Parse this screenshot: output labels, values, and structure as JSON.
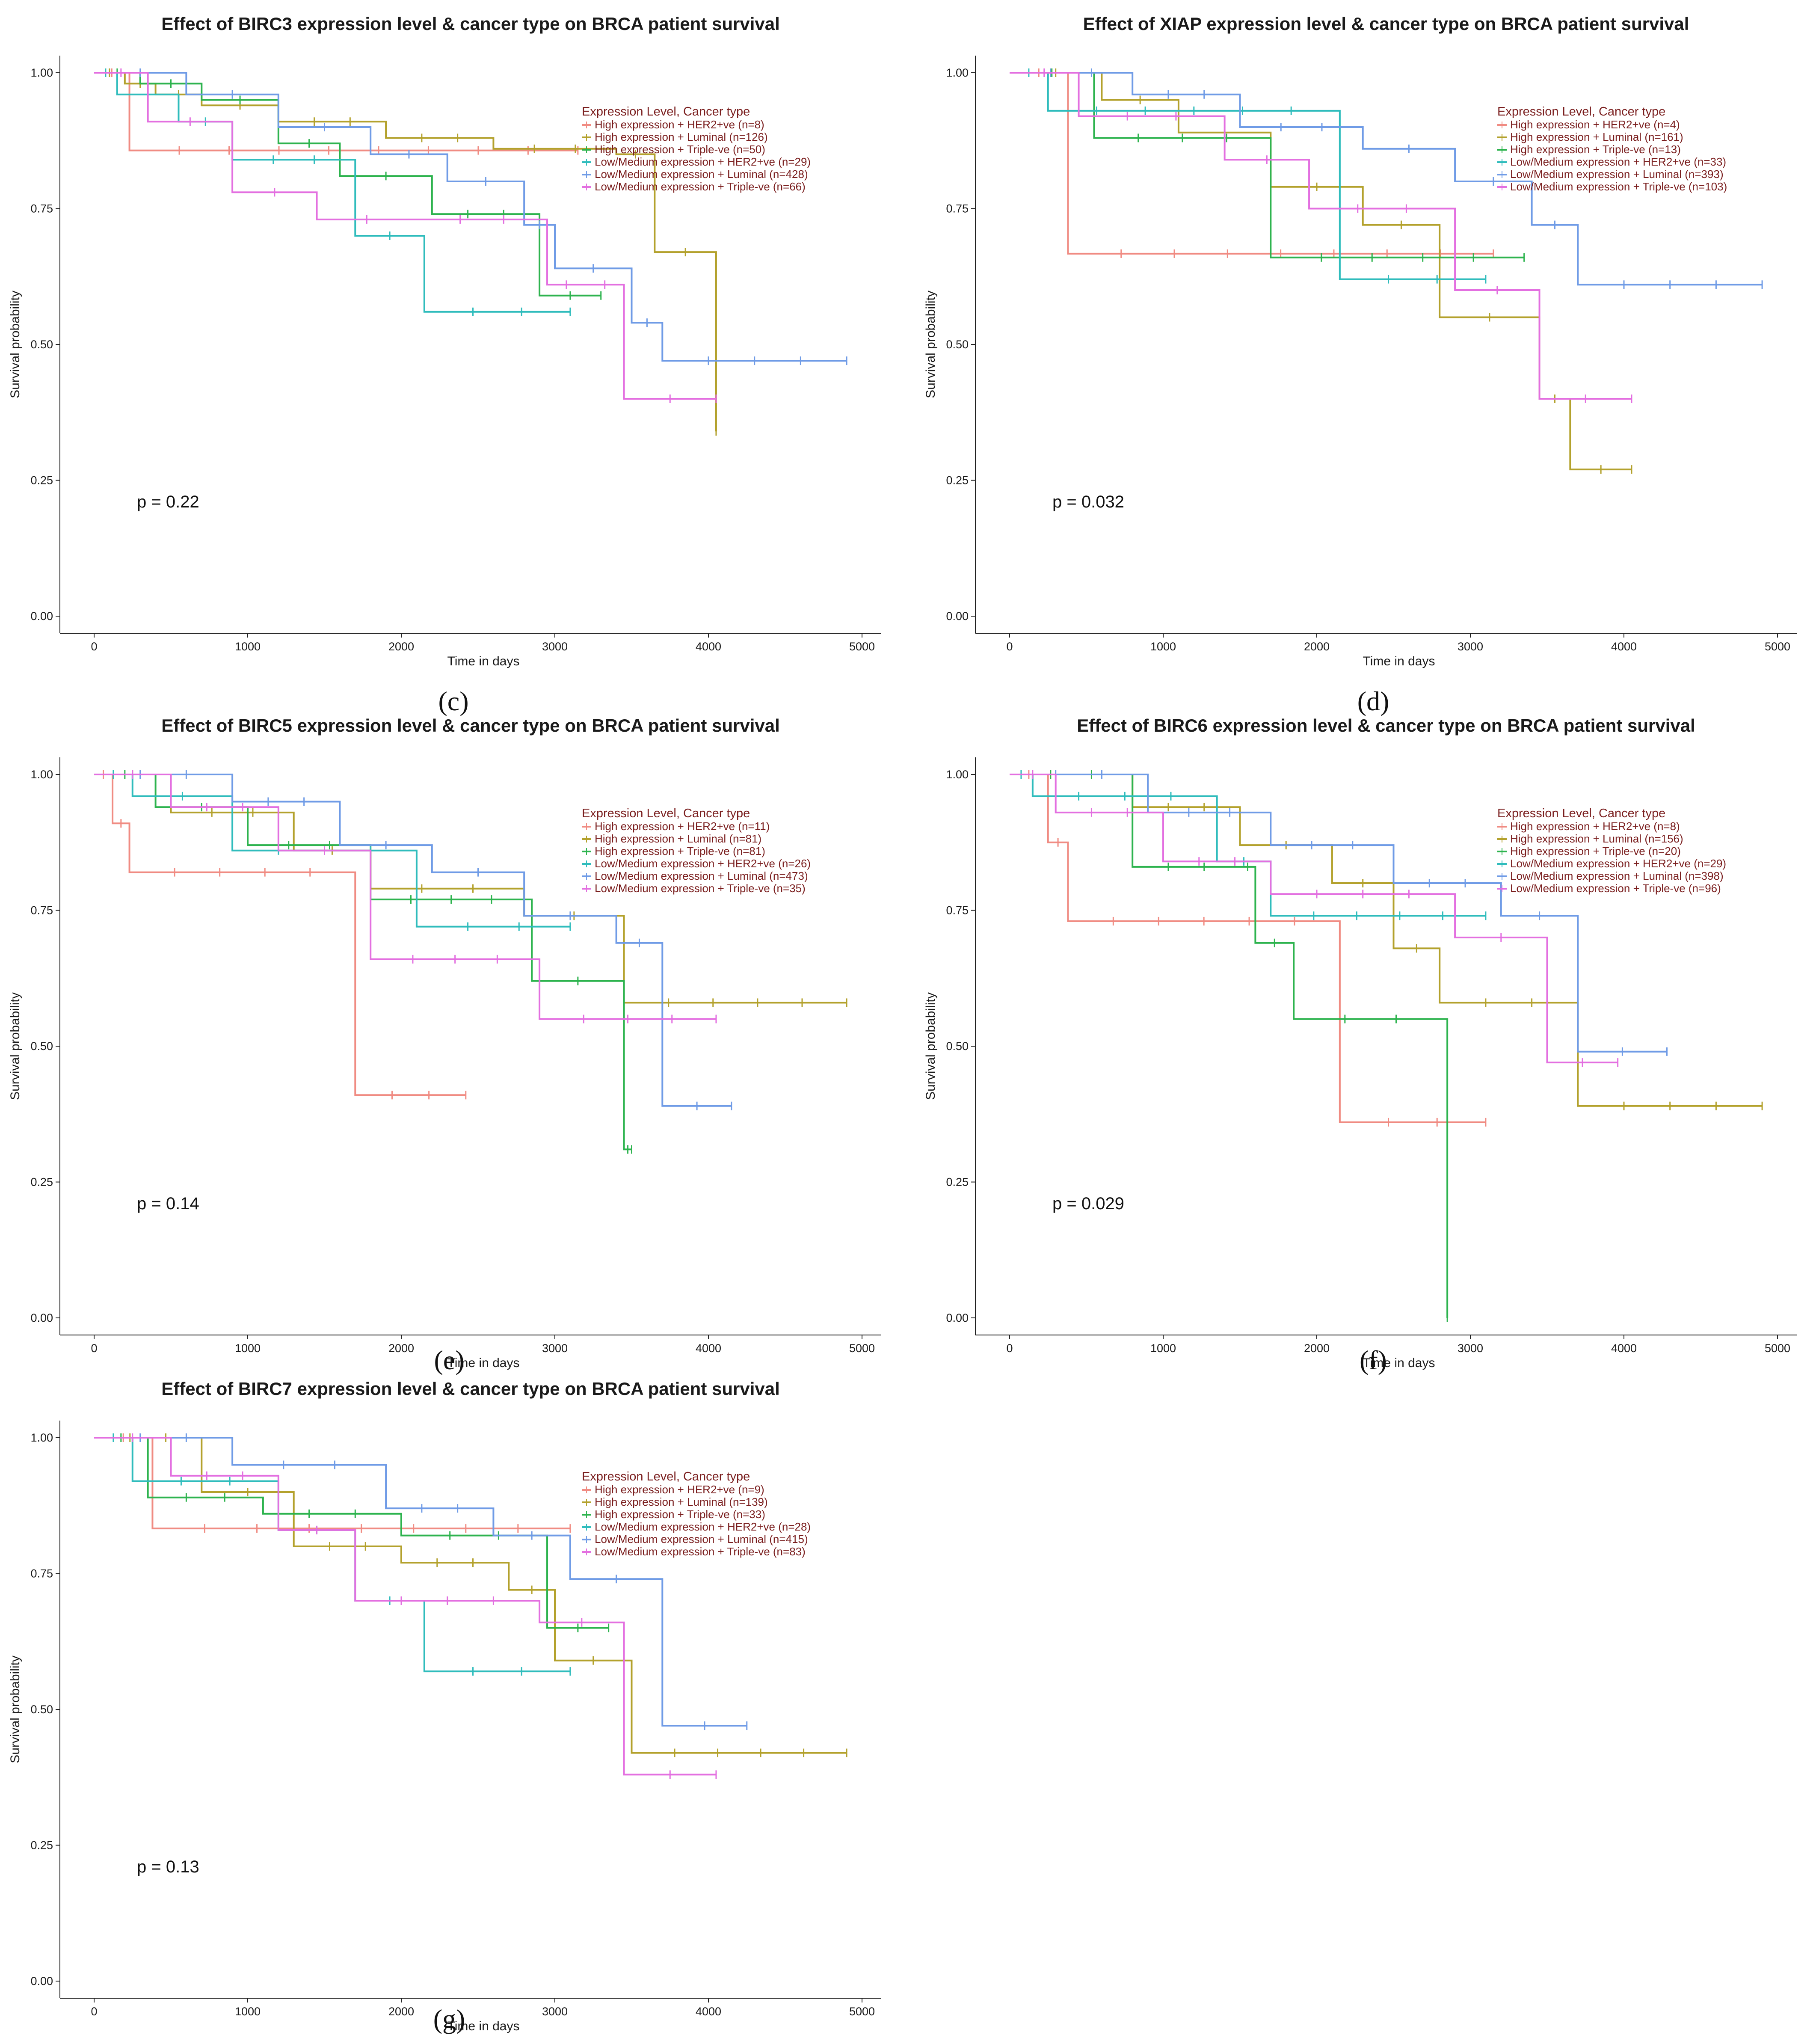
{
  "colors": {
    "high_her2": "#f08b82",
    "high_luminal": "#b3a12c",
    "high_triple": "#2db34e",
    "low_her2": "#2fbcbc",
    "low_luminal": "#6f9be6",
    "low_triple": "#e36fe0"
  },
  "chart_data": [
    {
      "type": "line",
      "panel": "(c)",
      "title": "Effect of BIRC3 expression level & cancer type on BRCA patient survival",
      "xlabel": "Time in days",
      "ylabel": "Survival probability",
      "xlim": [
        0,
        5000
      ],
      "ylim": [
        0,
        1
      ],
      "xticks": [
        "0",
        "1000",
        "2000",
        "3000",
        "4000",
        "5000"
      ],
      "yticks": [
        "0.00",
        "0.25",
        "0.50",
        "0.75",
        "1.00"
      ],
      "p_value": "p = 0.22",
      "legend_title": "Expression Level, Cancer type",
      "series": [
        {
          "name": "High expression + HER2+ve (n=8)",
          "color_key": "high_her2",
          "x": [
            0,
            230,
            3150
          ],
          "y": [
            1.0,
            0.857,
            0.857
          ]
        },
        {
          "name": "High expression + Luminal (n=126)",
          "color_key": "high_luminal",
          "x": [
            0,
            200,
            400,
            700,
            1200,
            1900,
            2600,
            3400,
            3650,
            4050
          ],
          "y": [
            1.0,
            0.98,
            0.96,
            0.94,
            0.91,
            0.88,
            0.86,
            0.85,
            0.67,
            0.34
          ]
        },
        {
          "name": "High expression + Triple-ve (n=50)",
          "color_key": "high_triple",
          "x": [
            0,
            300,
            700,
            1200,
            1600,
            2200,
            2900,
            3300
          ],
          "y": [
            1.0,
            0.98,
            0.95,
            0.87,
            0.81,
            0.74,
            0.59,
            0.59
          ]
        },
        {
          "name": "Low/Medium expression + HER2+ve (n=29)",
          "color_key": "low_her2",
          "x": [
            0,
            150,
            550,
            900,
            1700,
            2150,
            3100
          ],
          "y": [
            1.0,
            0.96,
            0.91,
            0.84,
            0.7,
            0.56,
            0.56
          ]
        },
        {
          "name": "Low/Medium expression + Luminal (n=428)",
          "color_key": "low_luminal",
          "x": [
            0,
            600,
            1200,
            1800,
            2300,
            2800,
            3000,
            3500,
            3700,
            4900
          ],
          "y": [
            1.0,
            0.96,
            0.9,
            0.85,
            0.8,
            0.72,
            0.64,
            0.54,
            0.47,
            0.47
          ]
        },
        {
          "name": "Low/Medium expression + Triple-ve (n=66)",
          "color_key": "low_triple",
          "x": [
            0,
            350,
            900,
            1450,
            2100,
            2950,
            3200,
            3450,
            4050
          ],
          "y": [
            1.0,
            0.91,
            0.78,
            0.73,
            0.73,
            0.61,
            0.61,
            0.4,
            0.4
          ]
        }
      ]
    },
    {
      "type": "line",
      "panel": "(d)",
      "title": "Effect of XIAP expression level & cancer type on BRCA patient survival",
      "xlabel": "Time in days",
      "ylabel": "Survival probability",
      "xlim": [
        0,
        5000
      ],
      "ylim": [
        0,
        1
      ],
      "xticks": [
        "0",
        "1000",
        "2000",
        "3000",
        "4000",
        "5000"
      ],
      "yticks": [
        "0.00",
        "0.25",
        "0.50",
        "0.75",
        "1.00"
      ],
      "p_value": "p = 0.032",
      "legend_title": "Expression Level, Cancer type",
      "series": [
        {
          "name": "High expression + HER2+ve (n=4)",
          "color_key": "high_her2",
          "x": [
            0,
            380,
            3150
          ],
          "y": [
            1.0,
            0.667,
            0.667
          ]
        },
        {
          "name": "High expression + Luminal (n=161)",
          "color_key": "high_luminal",
          "x": [
            0,
            600,
            1100,
            1700,
            2300,
            2800,
            3450,
            3650,
            4050
          ],
          "y": [
            1.0,
            0.95,
            0.89,
            0.79,
            0.72,
            0.55,
            0.4,
            0.27,
            0.27
          ]
        },
        {
          "name": "High expression + Triple-ve (n=13)",
          "color_key": "high_triple",
          "x": [
            0,
            550,
            1700,
            3350
          ],
          "y": [
            1.0,
            0.88,
            0.66,
            0.66
          ]
        },
        {
          "name": "Low/Medium expression + HER2+ve (n=33)",
          "color_key": "low_her2",
          "x": [
            0,
            250,
            2150,
            3100
          ],
          "y": [
            1.0,
            0.93,
            0.62,
            0.62
          ]
        },
        {
          "name": "Low/Medium expression + Luminal (n=393)",
          "color_key": "low_luminal",
          "x": [
            0,
            800,
            1500,
            2300,
            2900,
            3400,
            3700,
            4900
          ],
          "y": [
            1.0,
            0.96,
            0.9,
            0.86,
            0.8,
            0.72,
            0.61,
            0.61
          ]
        },
        {
          "name": "Low/Medium expression + Triple-ve (n=103)",
          "color_key": "low_triple",
          "x": [
            0,
            450,
            1400,
            1950,
            2900,
            3450,
            4050
          ],
          "y": [
            1.0,
            0.92,
            0.84,
            0.75,
            0.6,
            0.4,
            0.4
          ]
        }
      ]
    },
    {
      "type": "line",
      "panel": "(e)",
      "title": "Effect of BIRC5 expression level & cancer type on BRCA patient survival",
      "xlabel": "Time in days",
      "ylabel": "Survival probability",
      "xlim": [
        0,
        5000
      ],
      "ylim": [
        0,
        1
      ],
      "xticks": [
        "0",
        "1000",
        "2000",
        "3000",
        "4000",
        "5000"
      ],
      "yticks": [
        "0.00",
        "0.25",
        "0.50",
        "0.75",
        "1.00"
      ],
      "p_value": "p = 0.14",
      "legend_title": "Expression Level, Cancer type",
      "series": [
        {
          "name": "High expression + HER2+ve (n=11)",
          "color_key": "high_her2",
          "x": [
            0,
            120,
            230,
            1700,
            2420
          ],
          "y": [
            1.0,
            0.91,
            0.82,
            0.41,
            0.41
          ]
        },
        {
          "name": "High expression + Luminal (n=81)",
          "color_key": "high_luminal",
          "x": [
            0,
            500,
            1300,
            1800,
            2800,
            3450,
            4900
          ],
          "y": [
            1.0,
            0.93,
            0.86,
            0.79,
            0.74,
            0.58,
            0.58
          ]
        },
        {
          "name": "High expression + Triple-ve (n=81)",
          "color_key": "high_triple",
          "x": [
            0,
            400,
            1000,
            1800,
            2850,
            3450,
            3500
          ],
          "y": [
            1.0,
            0.94,
            0.87,
            0.77,
            0.62,
            0.31,
            0.31
          ]
        },
        {
          "name": "Low/Medium expression + HER2+ve (n=26)",
          "color_key": "low_her2",
          "x": [
            0,
            250,
            900,
            2100,
            3100
          ],
          "y": [
            1.0,
            0.96,
            0.86,
            0.72,
            0.72
          ]
        },
        {
          "name": "Low/Medium expression + Luminal (n=473)",
          "color_key": "low_luminal",
          "x": [
            0,
            900,
            1600,
            2200,
            2800,
            3400,
            3700,
            4150
          ],
          "y": [
            1.0,
            0.95,
            0.87,
            0.82,
            0.74,
            0.69,
            0.39,
            0.39
          ]
        },
        {
          "name": "Low/Medium expression + Triple-ve (n=35)",
          "color_key": "low_triple",
          "x": [
            0,
            500,
            1200,
            1800,
            2900,
            4050
          ],
          "y": [
            1.0,
            0.94,
            0.86,
            0.66,
            0.55,
            0.55
          ]
        }
      ]
    },
    {
      "type": "line",
      "panel": "(f)",
      "title": "Effect of BIRC6 expression level & cancer type on BRCA patient survival",
      "xlabel": "Time in days",
      "ylabel": "Survival probability",
      "xlim": [
        0,
        5000
      ],
      "ylim": [
        0,
        1
      ],
      "xticks": [
        "0",
        "1000",
        "2000",
        "3000",
        "4000",
        "5000"
      ],
      "yticks": [
        "0.00",
        "0.25",
        "0.50",
        "0.75",
        "1.00"
      ],
      "p_value": "p = 0.029",
      "legend_title": "Expression Level, Cancer type",
      "series": [
        {
          "name": "High expression + HER2+ve (n=8)",
          "color_key": "high_her2",
          "x": [
            0,
            250,
            380,
            2150,
            3100
          ],
          "y": [
            1.0,
            0.875,
            0.73,
            0.36,
            0.36
          ]
        },
        {
          "name": "High expression + Luminal (n=156)",
          "color_key": "high_luminal",
          "x": [
            0,
            800,
            1500,
            2100,
            2500,
            2800,
            3700,
            4900
          ],
          "y": [
            1.0,
            0.94,
            0.87,
            0.8,
            0.68,
            0.58,
            0.39,
            0.39
          ]
        },
        {
          "name": "High expression + Triple-ve (n=20)",
          "color_key": "high_triple",
          "x": [
            0,
            800,
            1500,
            1600,
            1850,
            2850
          ],
          "y": [
            1.0,
            0.83,
            0.83,
            0.69,
            0.55,
            0.0
          ]
        },
        {
          "name": "Low/Medium expression + HER2+ve (n=29)",
          "color_key": "low_her2",
          "x": [
            0,
            150,
            1350,
            1700,
            3100
          ],
          "y": [
            1.0,
            0.96,
            0.84,
            0.74,
            0.74
          ]
        },
        {
          "name": "Low/Medium expression + Luminal (n=398)",
          "color_key": "low_luminal",
          "x": [
            0,
            900,
            1700,
            2500,
            3200,
            3700,
            4280
          ],
          "y": [
            1.0,
            0.93,
            0.87,
            0.8,
            0.74,
            0.49,
            0.49
          ]
        },
        {
          "name": "Low/Medium expression + Triple-ve (n=96)",
          "color_key": "low_triple",
          "x": [
            0,
            300,
            1000,
            1700,
            2900,
            3500,
            3960
          ],
          "y": [
            1.0,
            0.93,
            0.84,
            0.78,
            0.7,
            0.47,
            0.47
          ]
        }
      ]
    },
    {
      "type": "line",
      "panel": "(g)",
      "title": "Effect of BIRC7 expression level & cancer type on BRCA patient survival",
      "xlabel": "Time in days",
      "ylabel": "Survival probability",
      "xlim": [
        0,
        5000
      ],
      "ylim": [
        0,
        1
      ],
      "xticks": [
        "0",
        "1000",
        "2000",
        "3000",
        "4000",
        "5000"
      ],
      "yticks": [
        "0.00",
        "0.25",
        "0.50",
        "0.75",
        "1.00"
      ],
      "p_value": "p = 0.13",
      "legend_title": "Expression Level, Cancer type",
      "series": [
        {
          "name": "High expression + HER2+ve (n=9)",
          "color_key": "high_her2",
          "x": [
            0,
            380,
            3100
          ],
          "y": [
            1.0,
            0.833,
            0.833
          ]
        },
        {
          "name": "High expression + Luminal (n=139)",
          "color_key": "high_luminal",
          "x": [
            0,
            700,
            1300,
            2000,
            2700,
            3000,
            3500,
            4900
          ],
          "y": [
            1.0,
            0.9,
            0.8,
            0.77,
            0.72,
            0.59,
            0.42,
            0.42
          ]
        },
        {
          "name": "High expression + Triple-ve (n=33)",
          "color_key": "high_triple",
          "x": [
            0,
            350,
            1100,
            2000,
            2950,
            3350
          ],
          "y": [
            1.0,
            0.89,
            0.86,
            0.82,
            0.65,
            0.65
          ]
        },
        {
          "name": "Low/Medium expression + HER2+ve (n=28)",
          "color_key": "low_her2",
          "x": [
            0,
            250,
            1200,
            1700,
            2150,
            3100
          ],
          "y": [
            1.0,
            0.92,
            0.83,
            0.7,
            0.57,
            0.57
          ]
        },
        {
          "name": "Low/Medium expression + Luminal (n=415)",
          "color_key": "low_luminal",
          "x": [
            0,
            900,
            1900,
            2600,
            3100,
            3700,
            4250
          ],
          "y": [
            1.0,
            0.95,
            0.87,
            0.82,
            0.74,
            0.47,
            0.47
          ]
        },
        {
          "name": "Low/Medium expression + Triple-ve (n=83)",
          "color_key": "low_triple",
          "x": [
            0,
            500,
            1200,
            1700,
            2900,
            3450,
            4050
          ],
          "y": [
            1.0,
            0.93,
            0.83,
            0.7,
            0.66,
            0.38,
            0.38
          ]
        }
      ]
    }
  ]
}
